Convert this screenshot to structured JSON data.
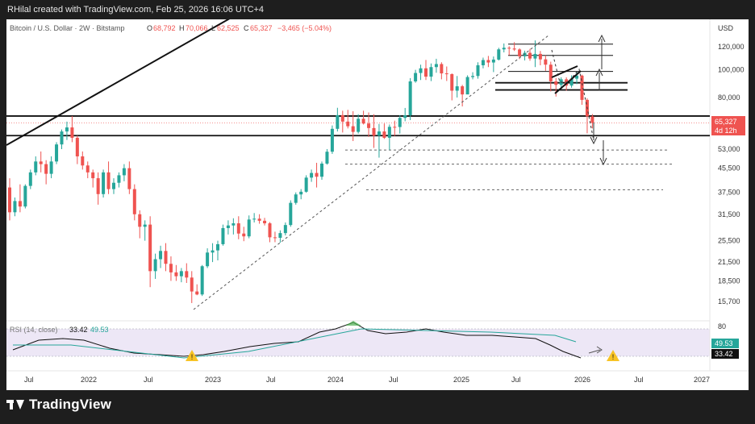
{
  "header": {
    "credit": "RHilal created with TradingView.com, Feb 25, 2026 16:06 UTC+4"
  },
  "legend": {
    "symbol": "Bitcoin / U.S. Dollar · 2W · Bitstamp",
    "open_label": "O",
    "open": "68,792",
    "high_label": "H",
    "high": "70,066",
    "low_label": "L",
    "low": "62,525",
    "close_label": "C",
    "close": "65,327",
    "change": "−3,465 (−5.04%)"
  },
  "rsi_legend": {
    "label": "RSI (14, close)",
    "value1": "33.42",
    "value2": "49.53"
  },
  "axis": {
    "currency": "USD"
  },
  "price_tag": {
    "value": "65,327",
    "countdown": "4d 12h"
  },
  "footer": {
    "brand": "TradingView"
  },
  "colors": {
    "bull": "#26a69a",
    "bear": "#ef5350",
    "rsi_line": "#111111",
    "rsi_ma": "#26a69a",
    "rsi_band": "#ede7f6",
    "warning": "#f7c325"
  },
  "chart_data": {
    "type": "candlestick",
    "title": "Bitcoin / U.S. Dollar · 2W · Bitstamp",
    "y_scale": "log",
    "ylim": [
      13800,
      133000
    ],
    "y_ticks": [
      {
        "value": 120000,
        "label": "120,000"
      },
      {
        "value": 100000,
        "label": "100,000"
      },
      {
        "value": 80000,
        "label": "80,000"
      },
      {
        "value": 53000,
        "label": "53,000"
      },
      {
        "value": 45500,
        "label": "45,500"
      },
      {
        "value": 37500,
        "label": "37,500"
      },
      {
        "value": 31500,
        "label": "31,500"
      },
      {
        "value": 25500,
        "label": "25,500"
      },
      {
        "value": 21500,
        "label": "21,500"
      },
      {
        "value": 18500,
        "label": "18,500"
      },
      {
        "value": 15700,
        "label": "15,700"
      }
    ],
    "x_ticks": [
      "Jul",
      "2022",
      "Jul",
      "2023",
      "Jul",
      "2024",
      "Jul",
      "2025",
      "Jul",
      "2026",
      "Jul",
      "2027"
    ],
    "last_close": 65327,
    "candles_approx": [
      [
        39000,
        42000,
        30000,
        32000
      ],
      [
        32000,
        36000,
        31000,
        35000
      ],
      [
        35000,
        40000,
        32000,
        33500
      ],
      [
        33500,
        40000,
        33000,
        39500
      ],
      [
        39500,
        45000,
        38500,
        44000
      ],
      [
        44000,
        50000,
        43000,
        48000
      ],
      [
        48000,
        52000,
        44000,
        47000
      ],
      [
        47000,
        48500,
        40000,
        43500
      ],
      [
        43500,
        50000,
        42000,
        48000
      ],
      [
        48000,
        56000,
        47000,
        55000
      ],
      [
        55000,
        62000,
        53000,
        61000
      ],
      [
        61000,
        66000,
        57000,
        63000
      ],
      [
        63000,
        69000,
        56000,
        58000
      ],
      [
        58000,
        59000,
        47000,
        50000
      ],
      [
        50000,
        52000,
        45000,
        46500
      ],
      [
        46500,
        48000,
        42000,
        44000
      ],
      [
        44000,
        45000,
        39000,
        42000
      ],
      [
        42000,
        44000,
        34000,
        37000
      ],
      [
        37000,
        45000,
        36000,
        44000
      ],
      [
        44000,
        48000,
        37000,
        38500
      ],
      [
        38500,
        42000,
        37000,
        40500
      ],
      [
        40500,
        44000,
        39000,
        43000
      ],
      [
        43000,
        47000,
        41000,
        45500
      ],
      [
        45500,
        48000,
        37000,
        38500
      ],
      [
        38500,
        40000,
        30000,
        31500
      ],
      [
        31500,
        32500,
        26000,
        28500
      ],
      [
        28500,
        30000,
        25500,
        29000
      ],
      [
        29000,
        31000,
        17600,
        20000
      ],
      [
        20000,
        23000,
        18800,
        22000
      ],
      [
        22000,
        24500,
        20500,
        23500
      ],
      [
        23500,
        25000,
        20000,
        21200
      ],
      [
        21200,
        22500,
        18500,
        19800
      ],
      [
        19800,
        21000,
        18500,
        19200
      ],
      [
        19200,
        20500,
        18300,
        20000
      ],
      [
        20000,
        21300,
        18200,
        19000
      ],
      [
        19000,
        20000,
        15500,
        17000
      ],
      [
        17000,
        18000,
        16500,
        16600
      ],
      [
        16600,
        21000,
        16400,
        20800
      ],
      [
        20800,
        24000,
        20500,
        23200
      ],
      [
        23200,
        25000,
        21500,
        23600
      ],
      [
        23600,
        25500,
        21800,
        24800
      ],
      [
        24800,
        29000,
        24500,
        28200
      ],
      [
        28200,
        30000,
        26800,
        28800
      ],
      [
        28800,
        30500,
        26800,
        29300
      ],
      [
        29300,
        31000,
        25800,
        27000
      ],
      [
        27000,
        28500,
        25400,
        26400
      ],
      [
        26400,
        31200,
        26000,
        30200
      ],
      [
        30200,
        31800,
        29500,
        30400
      ],
      [
        30400,
        31500,
        29200,
        29900
      ],
      [
        29900,
        30600,
        28800,
        29300
      ],
      [
        29300,
        29600,
        25200,
        26200
      ],
      [
        26200,
        27400,
        25200,
        26100
      ],
      [
        26100,
        27700,
        25100,
        27100
      ],
      [
        27100,
        29500,
        26600,
        28900
      ],
      [
        28900,
        35200,
        28500,
        34500
      ],
      [
        34500,
        37500,
        34000,
        36900
      ],
      [
        36900,
        38500,
        35500,
        37700
      ],
      [
        37700,
        43000,
        37400,
        42200
      ],
      [
        42200,
        45000,
        40800,
        43800
      ],
      [
        43800,
        47500,
        39000,
        42500
      ],
      [
        42500,
        48000,
        41500,
        47200
      ],
      [
        47200,
        53000,
        46800,
        51900
      ],
      [
        51900,
        64000,
        51000,
        62300
      ],
      [
        62300,
        73700,
        61000,
        69500
      ],
      [
        69500,
        72000,
        60500,
        66000
      ],
      [
        66000,
        72500,
        62500,
        63600
      ],
      [
        63600,
        71700,
        56500,
        60800
      ],
      [
        60800,
        70000,
        60000,
        67500
      ],
      [
        67500,
        72000,
        64500,
        65000
      ],
      [
        65000,
        71000,
        58400,
        62700
      ],
      [
        62700,
        70000,
        53500,
        59000
      ],
      [
        59000,
        64800,
        49500,
        61000
      ],
      [
        61000,
        65000,
        57500,
        58000
      ],
      [
        58000,
        64500,
        52600,
        63300
      ],
      [
        63300,
        66500,
        58900,
        63200
      ],
      [
        63200,
        69500,
        60000,
        68000
      ],
      [
        68000,
        73600,
        66200,
        69400
      ],
      [
        69400,
        93400,
        66800,
        91000
      ],
      [
        91000,
        99800,
        90000,
        97300
      ],
      [
        97300,
        104000,
        92000,
        101000
      ],
      [
        101000,
        108000,
        92000,
        94500
      ],
      [
        94500,
        105000,
        91200,
        102000
      ],
      [
        102000,
        109000,
        97500,
        104500
      ],
      [
        104500,
        106000,
        92500,
        97000
      ],
      [
        97000,
        102500,
        91300,
        96400
      ],
      [
        96400,
        97000,
        78200,
        84500
      ],
      [
        84500,
        95000,
        80000,
        87500
      ],
      [
        87500,
        88500,
        74500,
        82000
      ],
      [
        82000,
        95500,
        83000,
        94200
      ],
      [
        94200,
        97900,
        92500,
        95000
      ],
      [
        95000,
        106000,
        93000,
        103500
      ],
      [
        103500,
        110000,
        101000,
        107900
      ],
      [
        107900,
        111500,
        102000,
        105800
      ],
      [
        105800,
        111000,
        98000,
        108300
      ],
      [
        108300,
        119000,
        107500,
        117500
      ],
      [
        117500,
        123200,
        114700,
        119000
      ],
      [
        119000,
        120500,
        112000,
        118300
      ],
      [
        118300,
        124500,
        116000,
        117400
      ],
      [
        117400,
        118500,
        108700,
        111200
      ],
      [
        111200,
        116300,
        107600,
        114300
      ],
      [
        114300,
        118000,
        107300,
        109200
      ],
      [
        109200,
        126200,
        102000,
        113300
      ],
      [
        113300,
        116000,
        103500,
        108500
      ],
      [
        108500,
        112000,
        99000,
        104000
      ],
      [
        104000,
        106500,
        84000,
        91000
      ],
      [
        91000,
        93500,
        80600,
        88500
      ],
      [
        88500,
        94000,
        85500,
        92500
      ],
      [
        92500,
        94000,
        84500,
        88000
      ],
      [
        88000,
        95500,
        86500,
        93000
      ],
      [
        93000,
        97900,
        89000,
        95300
      ],
      [
        95300,
        96000,
        75500,
        78500
      ],
      [
        78500,
        79500,
        60100,
        68800
      ],
      [
        68800,
        70100,
        62500,
        65300
      ]
    ],
    "horizontal_levels": [
      {
        "value": 69000,
        "style": "solid"
      },
      {
        "value": 59000,
        "style": "solid"
      },
      {
        "value": 52600,
        "style": "dashed"
      },
      {
        "value": 47000,
        "style": "dashed"
      },
      {
        "value": 38300,
        "style": "dashed"
      },
      {
        "value": 122500,
        "style": "solid"
      },
      {
        "value": 112000,
        "style": "solid"
      },
      {
        "value": 98500,
        "style": "solid"
      }
    ],
    "rsi": {
      "ylim": [
        20,
        90
      ],
      "y_ticks": [
        80
      ],
      "value": 33.42,
      "ma_value": 49.53
    }
  }
}
